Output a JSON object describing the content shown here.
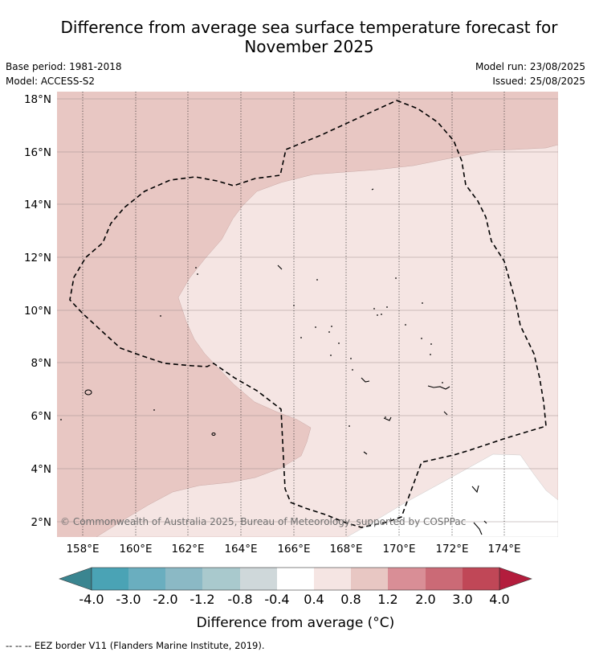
{
  "title_line1": "Difference from average sea surface temperature forecast for",
  "title_line2": "November 2025",
  "base_period": "Base period: 1981-2018",
  "model": "Model: ACCESS-S2",
  "model_run": "Model run: 23/08/2025",
  "issued": "Issued: 25/08/2025",
  "map": {
    "lat_ticks": [
      "18°N",
      "16°N",
      "14°N",
      "12°N",
      "10°N",
      "8°N",
      "6°N",
      "4°N",
      "2°N"
    ],
    "lon_ticks": [
      "158°E",
      "160°E",
      "162°E",
      "164°E",
      "166°E",
      "168°E",
      "170°E",
      "172°E",
      "174°E"
    ],
    "copyright": "© Commonwealth of Australia 2025, Bureau of Meteorology, supported by COSPPac"
  },
  "colorbar": {
    "tick_labels": [
      "-4.0",
      "-3.0",
      "-2.0",
      "-1.2",
      "-0.8",
      "-0.4",
      "0.4",
      "0.8",
      "1.2",
      "2.0",
      "3.0",
      "4.0"
    ],
    "colors": [
      "#4aa3b5",
      "#6aaebf",
      "#8bb9c5",
      "#a9c9cd",
      "#cfd8da",
      "#ffffff",
      "#f5e5e3",
      "#e8c7c3",
      "#d98e96",
      "#cb6a76",
      "#c04757"
    ],
    "under_color": "#3a8590",
    "over_color": "#b31d3d",
    "label": "Difference from average (°C)"
  },
  "footer": "--  --  -- EEZ border V11 (Flanders Marine Institute, 2019)."
}
